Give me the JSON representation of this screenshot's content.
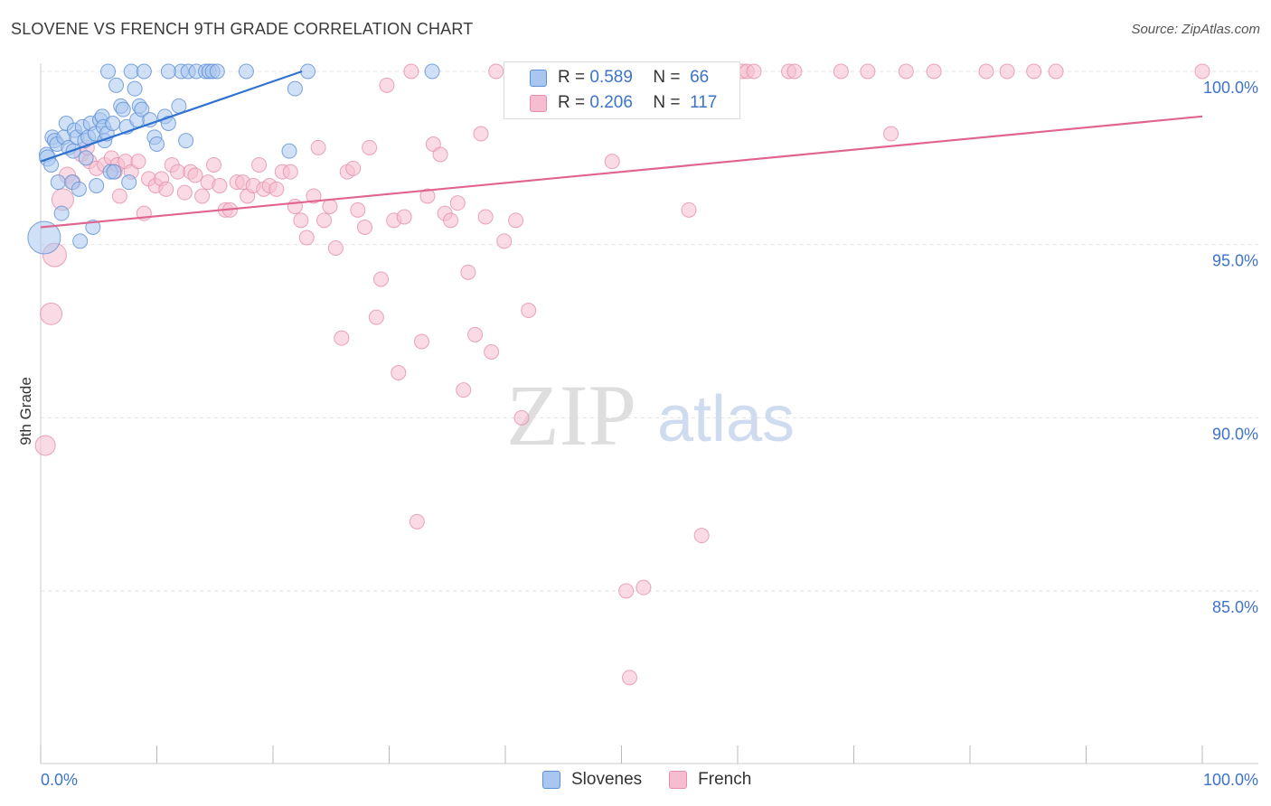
{
  "title": "SLOVENE VS FRENCH 9TH GRADE CORRELATION CHART",
  "source": "Source: ZipAtlas.com",
  "watermark": {
    "zip": "ZIP",
    "atlas": "atlas"
  },
  "colors": {
    "slovene_fill": "#a9c6ee",
    "slovene_stroke": "#5b8fd6",
    "slovene_line": "#2f72d0",
    "french_fill": "#f6bdd0",
    "french_stroke": "#e58eaa",
    "french_line": "#e0648f",
    "axis_text": "#3d73c9",
    "grid": "#e3e3e3"
  },
  "legend": {
    "r_label": "R =",
    "n_label": "N =",
    "slovenes": {
      "r": "0.589",
      "n": "66"
    },
    "french": {
      "r": "0.206",
      "n": "117"
    }
  },
  "chart_data": {
    "type": "scatter",
    "title": "SLOVENE VS FRENCH 9TH GRADE CORRELATION CHART",
    "xlabel": "",
    "ylabel": "9th Grade",
    "xlim": [
      0,
      100
    ],
    "ylim": [
      80.5,
      100.5
    ],
    "x_tick_labels": [
      "0.0%",
      "100.0%"
    ],
    "y_ticks": [
      85,
      90,
      95,
      100
    ],
    "y_tick_labels": [
      "85.0%",
      "90.0%",
      "95.0%",
      "100.0%"
    ],
    "grid": true,
    "legend_position": "bottom",
    "series": [
      {
        "name": "Slovenes",
        "trend": {
          "x0": 0,
          "y0": 97.4,
          "x1": 22.5,
          "y1": 100.0
        },
        "points": [
          [
            0.3,
            95.2,
            18
          ],
          [
            0.5,
            97.6,
            8
          ],
          [
            0.6,
            97.5,
            9
          ],
          [
            0.9,
            97.3,
            8
          ],
          [
            1.0,
            98.1,
            8
          ],
          [
            1.2,
            98.0,
            8
          ],
          [
            1.4,
            97.9,
            8
          ],
          [
            1.5,
            96.8,
            8
          ],
          [
            1.8,
            95.9,
            8
          ],
          [
            2.0,
            98.1,
            8
          ],
          [
            2.2,
            98.5,
            8
          ],
          [
            2.4,
            97.8,
            8
          ],
          [
            2.7,
            96.8,
            8
          ],
          [
            2.8,
            97.7,
            8
          ],
          [
            2.9,
            98.3,
            8
          ],
          [
            3.1,
            98.1,
            8
          ],
          [
            3.3,
            96.6,
            8
          ],
          [
            3.4,
            95.1,
            8
          ],
          [
            3.6,
            98.4,
            8
          ],
          [
            3.8,
            98.0,
            8
          ],
          [
            3.9,
            97.5,
            8
          ],
          [
            4.1,
            98.1,
            8
          ],
          [
            4.3,
            98.5,
            8
          ],
          [
            4.5,
            95.5,
            8
          ],
          [
            4.7,
            98.2,
            8
          ],
          [
            4.8,
            96.7,
            8
          ],
          [
            5.1,
            98.6,
            8
          ],
          [
            5.3,
            98.7,
            8
          ],
          [
            5.4,
            98.4,
            8
          ],
          [
            5.5,
            98.0,
            8
          ],
          [
            5.7,
            98.2,
            8
          ],
          [
            5.8,
            100,
            8
          ],
          [
            6.0,
            97.1,
            8
          ],
          [
            6.2,
            98.5,
            8
          ],
          [
            6.3,
            97.1,
            8
          ],
          [
            6.5,
            99.6,
            8
          ],
          [
            6.9,
            99.0,
            8
          ],
          [
            7.1,
            98.9,
            8
          ],
          [
            7.4,
            98.4,
            8
          ],
          [
            7.6,
            96.8,
            8
          ],
          [
            7.8,
            100,
            8
          ],
          [
            8.1,
            99.5,
            8
          ],
          [
            8.3,
            98.6,
            8
          ],
          [
            8.5,
            99.0,
            8
          ],
          [
            8.7,
            98.9,
            8
          ],
          [
            8.9,
            100,
            8
          ],
          [
            9.4,
            98.6,
            8
          ],
          [
            9.8,
            98.1,
            8
          ],
          [
            10.0,
            97.9,
            8
          ],
          [
            10.7,
            98.7,
            8
          ],
          [
            11.0,
            98.5,
            8
          ],
          [
            11.9,
            99.0,
            8
          ],
          [
            12.1,
            100,
            8
          ],
          [
            12.7,
            100,
            8
          ],
          [
            12.5,
            98.0,
            8
          ],
          [
            13.4,
            100,
            8
          ],
          [
            14.2,
            100,
            8
          ],
          [
            14.5,
            100,
            8
          ],
          [
            14.8,
            100,
            8
          ],
          [
            15.2,
            100,
            8
          ],
          [
            17.7,
            100,
            8
          ],
          [
            21.4,
            97.7,
            8
          ],
          [
            21.9,
            99.5,
            8
          ],
          [
            23.0,
            100,
            8
          ],
          [
            33.7,
            100,
            8
          ],
          [
            11.0,
            100,
            8
          ]
        ]
      },
      {
        "name": "French",
        "trend": {
          "x0": 0,
          "y0": 95.5,
          "x1": 100,
          "y1": 98.7
        },
        "points": [
          [
            0.4,
            89.2,
            11
          ],
          [
            0.9,
            93.0,
            12
          ],
          [
            1.2,
            94.7,
            13
          ],
          [
            1.9,
            96.3,
            12
          ],
          [
            2.3,
            97.0,
            9
          ],
          [
            2.8,
            96.8,
            8
          ],
          [
            3.5,
            97.6,
            8
          ],
          [
            4.0,
            97.8,
            8
          ],
          [
            4.2,
            97.4,
            8
          ],
          [
            4.8,
            97.2,
            8
          ],
          [
            5.5,
            97.3,
            8
          ],
          [
            6.1,
            97.5,
            8
          ],
          [
            6.4,
            97.1,
            8
          ],
          [
            6.6,
            97.3,
            8
          ],
          [
            6.8,
            96.4,
            8
          ],
          [
            7.3,
            97.4,
            8
          ],
          [
            7.8,
            97.1,
            8
          ],
          [
            8.4,
            97.4,
            8
          ],
          [
            8.9,
            95.9,
            8
          ],
          [
            9.3,
            96.9,
            8
          ],
          [
            9.9,
            96.7,
            8
          ],
          [
            10.4,
            96.9,
            8
          ],
          [
            10.8,
            96.6,
            8
          ],
          [
            11.3,
            97.3,
            8
          ],
          [
            11.8,
            97.1,
            8
          ],
          [
            12.4,
            96.5,
            8
          ],
          [
            12.9,
            97.1,
            8
          ],
          [
            13.3,
            97.0,
            8
          ],
          [
            13.9,
            96.4,
            8
          ],
          [
            14.4,
            96.8,
            8
          ],
          [
            14.9,
            97.3,
            8
          ],
          [
            15.4,
            96.7,
            8
          ],
          [
            15.9,
            96.0,
            8
          ],
          [
            16.3,
            96.0,
            8
          ],
          [
            16.9,
            96.8,
            8
          ],
          [
            17.4,
            96.8,
            8
          ],
          [
            17.8,
            96.4,
            8
          ],
          [
            18.3,
            96.7,
            8
          ],
          [
            18.8,
            97.3,
            8
          ],
          [
            19.2,
            96.6,
            8
          ],
          [
            19.7,
            96.7,
            8
          ],
          [
            20.3,
            96.6,
            8
          ],
          [
            20.8,
            97.1,
            8
          ],
          [
            21.5,
            97.1,
            8
          ],
          [
            21.9,
            96.1,
            8
          ],
          [
            22.4,
            95.7,
            8
          ],
          [
            22.9,
            95.2,
            8
          ],
          [
            23.5,
            96.4,
            8
          ],
          [
            23.9,
            97.8,
            8
          ],
          [
            24.4,
            95.7,
            8
          ],
          [
            24.9,
            96.1,
            8
          ],
          [
            25.4,
            94.9,
            8
          ],
          [
            25.9,
            92.3,
            8
          ],
          [
            26.4,
            97.1,
            8
          ],
          [
            26.9,
            97.2,
            8
          ],
          [
            27.3,
            96.0,
            8
          ],
          [
            27.9,
            95.5,
            8
          ],
          [
            28.3,
            97.8,
            8
          ],
          [
            28.9,
            92.9,
            8
          ],
          [
            29.3,
            94.0,
            8
          ],
          [
            29.8,
            99.6,
            8
          ],
          [
            30.4,
            95.7,
            8
          ],
          [
            30.8,
            91.3,
            8
          ],
          [
            31.3,
            95.8,
            8
          ],
          [
            31.9,
            100,
            8
          ],
          [
            32.4,
            87.0,
            8
          ],
          [
            32.8,
            92.2,
            8
          ],
          [
            33.3,
            96.4,
            8
          ],
          [
            33.8,
            97.9,
            8
          ],
          [
            34.4,
            97.6,
            8
          ],
          [
            34.8,
            95.9,
            8
          ],
          [
            35.3,
            95.7,
            8
          ],
          [
            35.9,
            96.2,
            8
          ],
          [
            36.4,
            90.8,
            8
          ],
          [
            36.8,
            94.2,
            8
          ],
          [
            37.4,
            92.4,
            8
          ],
          [
            37.9,
            98.2,
            8
          ],
          [
            38.3,
            95.8,
            8
          ],
          [
            38.8,
            91.9,
            8
          ],
          [
            39.2,
            100,
            8
          ],
          [
            39.9,
            95.1,
            8
          ],
          [
            40.5,
            100,
            8
          ],
          [
            40.9,
            95.7,
            8
          ],
          [
            41.4,
            90.0,
            8
          ],
          [
            42.0,
            93.1,
            8
          ],
          [
            42.5,
            100,
            8
          ],
          [
            43.4,
            100,
            8
          ],
          [
            44.4,
            100,
            8
          ],
          [
            45.9,
            100,
            8
          ],
          [
            46.4,
            100,
            8
          ],
          [
            47.4,
            100,
            8
          ],
          [
            48.4,
            100,
            8
          ],
          [
            49.2,
            97.4,
            8
          ],
          [
            50.4,
            85.0,
            8
          ],
          [
            50.7,
            82.5,
            8
          ],
          [
            51.2,
            100,
            8
          ],
          [
            51.9,
            85.1,
            8
          ],
          [
            52.4,
            100,
            8
          ],
          [
            53.4,
            100,
            8
          ],
          [
            55.2,
            100,
            8
          ],
          [
            55.8,
            96.0,
            8
          ],
          [
            56.9,
            86.6,
            8
          ],
          [
            60.4,
            100,
            8
          ],
          [
            60.8,
            100,
            8
          ],
          [
            61.4,
            100,
            8
          ],
          [
            64.4,
            100,
            8
          ],
          [
            64.9,
            100,
            8
          ],
          [
            68.9,
            100,
            8
          ],
          [
            71.2,
            100,
            8
          ],
          [
            73.2,
            98.2,
            8
          ],
          [
            74.5,
            100,
            8
          ],
          [
            76.9,
            100,
            8
          ],
          [
            81.4,
            100,
            8
          ],
          [
            83.2,
            100,
            8
          ],
          [
            85.5,
            100,
            8
          ],
          [
            87.4,
            100,
            8
          ],
          [
            100.0,
            100,
            8
          ]
        ]
      }
    ]
  },
  "bottom_legend": {
    "slovenes": "Slovenes",
    "french": "French"
  }
}
